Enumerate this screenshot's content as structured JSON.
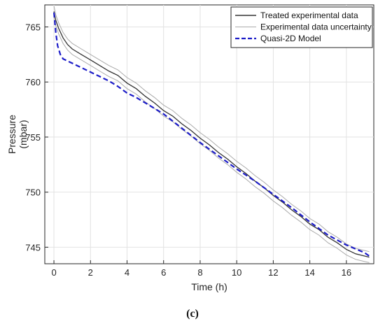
{
  "caption": "(c)",
  "chart_data": {
    "type": "line",
    "title": "",
    "xlabel": "Time (h)",
    "ylabel": "Pressure\n(mbar)",
    "xlim": [
      -0.5,
      17.5
    ],
    "ylim": [
      743.5,
      767
    ],
    "xticks": [
      0,
      2,
      4,
      6,
      8,
      10,
      12,
      14,
      16
    ],
    "yticks": [
      745,
      750,
      755,
      760,
      765
    ],
    "grid": true,
    "legend_position": "top-right",
    "series": [
      {
        "name": "Treated experimental data",
        "color": "#333333",
        "style": "solid",
        "x": [
          0,
          0.1,
          0.25,
          0.5,
          0.75,
          1,
          1.5,
          2,
          2.5,
          3,
          3.5,
          4,
          4.5,
          5,
          5.5,
          6,
          6.5,
          7,
          7.5,
          8,
          8.5,
          9,
          9.5,
          10,
          10.5,
          11,
          11.5,
          12,
          12.5,
          13,
          13.5,
          14,
          14.5,
          15,
          15.5,
          16,
          16.5,
          17,
          17.25
        ],
        "y": [
          766.4,
          765.6,
          764.9,
          764.0,
          763.4,
          763.0,
          762.5,
          762.0,
          761.5,
          761.0,
          760.6,
          759.9,
          759.4,
          758.7,
          758.1,
          757.4,
          756.9,
          756.2,
          755.6,
          754.9,
          754.3,
          753.6,
          753.0,
          752.3,
          751.7,
          751.0,
          750.4,
          749.7,
          749.1,
          748.4,
          747.8,
          747.1,
          746.6,
          745.9,
          745.4,
          744.8,
          744.4,
          744.2,
          744.1
        ]
      },
      {
        "name": "Experimental data uncertainty",
        "color": "#aaaaaa",
        "style": "solid",
        "band_offset": 0.5,
        "x": [
          0,
          0.1,
          0.25,
          0.5,
          0.75,
          1,
          1.5,
          2,
          2.5,
          3,
          3.5,
          4,
          4.5,
          5,
          5.5,
          6,
          6.5,
          7,
          7.5,
          8,
          8.5,
          9,
          9.5,
          10,
          10.5,
          11,
          11.5,
          12,
          12.5,
          13,
          13.5,
          14,
          14.5,
          15,
          15.5,
          16,
          16.5,
          17,
          17.25
        ],
        "y_upper": [
          766.9,
          766.1,
          765.4,
          764.5,
          763.9,
          763.5,
          763.0,
          762.5,
          762.0,
          761.5,
          761.1,
          760.4,
          759.9,
          759.2,
          758.6,
          757.9,
          757.4,
          756.7,
          756.1,
          755.4,
          754.8,
          754.1,
          753.5,
          752.8,
          752.2,
          751.5,
          750.9,
          750.2,
          749.6,
          748.9,
          748.3,
          747.6,
          747.1,
          746.4,
          745.9,
          745.3,
          744.9,
          744.7,
          744.6
        ],
        "y_lower": [
          765.9,
          765.1,
          764.4,
          763.5,
          762.9,
          762.5,
          762.0,
          761.5,
          761.0,
          760.5,
          760.1,
          759.4,
          758.9,
          758.2,
          757.6,
          756.9,
          756.4,
          755.7,
          755.1,
          754.4,
          753.8,
          753.1,
          752.5,
          751.8,
          751.2,
          750.5,
          749.9,
          749.2,
          748.6,
          747.9,
          747.3,
          746.6,
          746.1,
          745.4,
          744.9,
          744.3,
          743.9,
          743.7,
          743.6
        ]
      },
      {
        "name": "Quasi-2D Model",
        "color": "#1c1cc8",
        "style": "dashed",
        "x": [
          0,
          0.1,
          0.2,
          0.35,
          0.5,
          0.75,
          1,
          1.5,
          2,
          2.5,
          3,
          3.5,
          4,
          4.5,
          5,
          5.5,
          6,
          7,
          8,
          9,
          10,
          11,
          12,
          13,
          14,
          15,
          16,
          17,
          17.25
        ],
        "y": [
          766.3,
          764.5,
          763.3,
          762.5,
          762.1,
          761.9,
          761.7,
          761.3,
          760.9,
          760.5,
          760.1,
          759.6,
          759.0,
          758.6,
          758.1,
          757.6,
          757.1,
          755.8,
          754.5,
          753.3,
          752.1,
          751.0,
          749.8,
          748.6,
          747.3,
          746.1,
          745.2,
          744.5,
          744.2
        ]
      }
    ]
  }
}
